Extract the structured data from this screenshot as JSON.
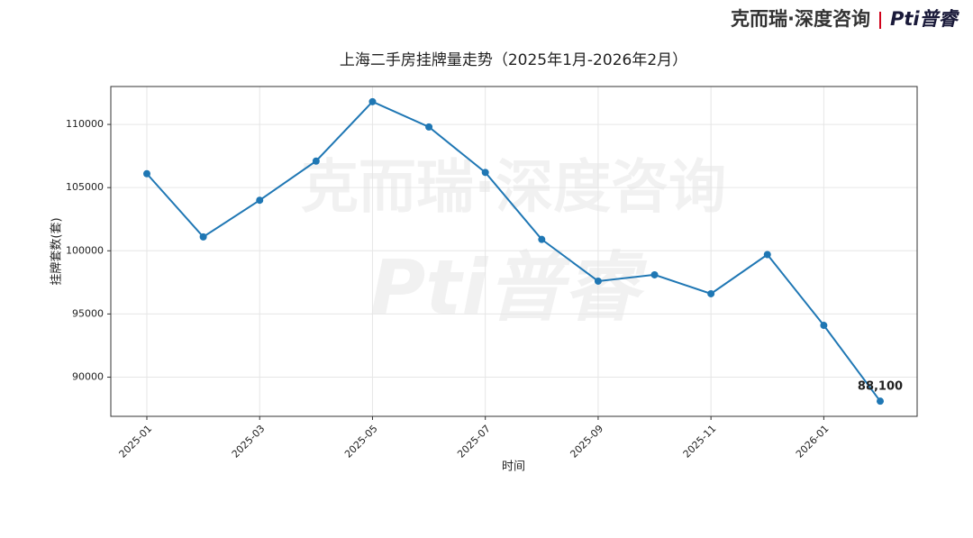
{
  "brand": "克而瑞·深度咨询",
  "sub_brand": "Pti普睿",
  "chart_data": {
    "type": "line",
    "title": "上海二手房挂牌量走势（2025年1月-2026年2月）",
    "xlabel": "时间",
    "ylabel": "挂牌套数(套)",
    "x": [
      "2025-01",
      "2025-02",
      "2025-03",
      "2025-04",
      "2025-05",
      "2025-06",
      "2025-07",
      "2025-08",
      "2025-09",
      "2025-10",
      "2025-11",
      "2025-12",
      "2026-01",
      "2026-02"
    ],
    "xticks": [
      "2025-01",
      "2025-03",
      "2025-05",
      "2025-07",
      "2025-09",
      "2025-11",
      "2026-01"
    ],
    "series": [
      {
        "name": "挂牌套数",
        "color": "#1f77b4",
        "values": [
          106100,
          101100,
          104000,
          107100,
          111800,
          109800,
          106200,
          100900,
          97600,
          98100,
          96600,
          99700,
          94100,
          88100
        ],
        "value_labels": [
          null,
          null,
          null,
          null,
          null,
          null,
          null,
          null,
          null,
          null,
          null,
          null,
          null,
          "88,100"
        ]
      }
    ],
    "ylim": [
      86900,
      113000
    ],
    "yticks": [
      90000,
      95000,
      100000,
      105000,
      110000
    ],
    "grid": true
  }
}
